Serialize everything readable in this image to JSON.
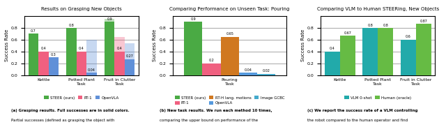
{
  "chart_data": [
    {
      "type": "bar",
      "title": "Results on Grasping New Objects",
      "ylabel": "Success Rate",
      "categories": [
        "Kettle",
        "Potted Plant\nTask",
        "Fruit in Clutter\nTask"
      ],
      "series": [
        {
          "name": "STEER (ours)",
          "color": "#4aaa44",
          "values": [
            0.7,
            0.8,
            0.9
          ],
          "partial": [
            0.7,
            0.8,
            0.95
          ]
        },
        {
          "name": "RT-1",
          "color": "#f06080",
          "values": [
            0.4,
            0.4,
            0.4
          ],
          "partial": [
            0.4,
            0.4,
            0.65
          ]
        },
        {
          "name": "OpenVLA",
          "color": "#6090d8",
          "values": [
            0.3,
            0.04,
            0.27
          ],
          "partial": [
            0.3,
            0.6,
            0.54
          ]
        }
      ],
      "ylim": [
        0,
        1.0
      ],
      "yticks": [
        0.0,
        0.2,
        0.4,
        0.6,
        0.8
      ],
      "grid": true,
      "legend": "bottom",
      "data_labels": true,
      "annotations": [
        "(a) Grasping results. Full successes are in solid colors.",
        "Partial successes (defined as grasping the object with"
      ]
    },
    {
      "type": "bar",
      "title": "Comparing Performance on Unseen Task: Pouring",
      "ylabel": "Success Rate",
      "categories": [
        "Pouring\nTask"
      ],
      "series": [
        {
          "name": "STEER (ours)",
          "color": "#4aaa44",
          "values": [
            0.9
          ]
        },
        {
          "name": "RT-1",
          "color": "#f06080",
          "values": [
            0.2
          ]
        },
        {
          "name": "RT-H lang. motions",
          "color": "#d07820",
          "values": [
            0.65
          ]
        },
        {
          "name": "OpenVLA",
          "color": "#5599dd",
          "values": [
            0.04
          ]
        },
        {
          "name": "Image GCBC",
          "color": "#44aacc",
          "values": [
            0.02
          ]
        }
      ],
      "ylim": [
        0,
        1.0
      ],
      "yticks": [
        0.0,
        0.2,
        0.4,
        0.6,
        0.8
      ],
      "grid": true,
      "legend": "bottom",
      "data_labels": true,
      "annotations": [
        "(b) New task results. We run each method 10 times,",
        "comparing the upper bound on performance of the"
      ]
    },
    {
      "type": "bar",
      "title": "Comparing VLM to Human STEERing, New Objects",
      "ylabel": "Success Rate",
      "categories": [
        "Kettle",
        "Potted Plant\nTask",
        "Fruit in Clutter\nTask"
      ],
      "series": [
        {
          "name": "VLM 0-shot",
          "color": "#22aaaa",
          "values": [
            0.4,
            0.8,
            0.6
          ]
        },
        {
          "name": "Human (oracle)",
          "color": "#66bb44",
          "values": [
            0.67,
            0.8,
            0.87
          ]
        }
      ],
      "ylim": [
        0,
        1.0
      ],
      "yticks": [
        0.0,
        0.2,
        0.4,
        0.6,
        0.8
      ],
      "grid": true,
      "legend": "bottom",
      "data_labels": true,
      "annotations": [
        "(c) We report the success rate of a VLM controlling",
        "the robot compared to the human operator and find"
      ]
    }
  ]
}
